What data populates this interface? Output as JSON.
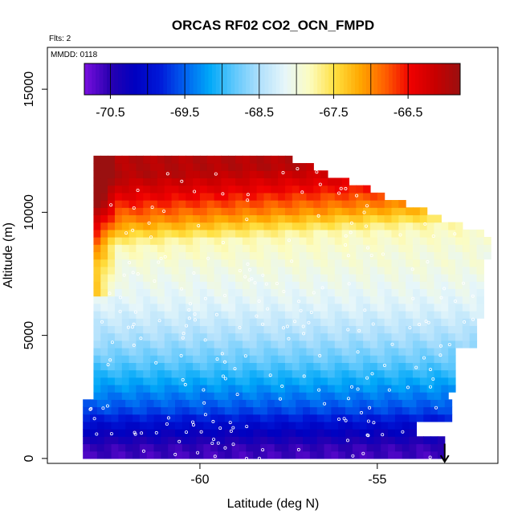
{
  "chart_data": {
    "type": "heatmap",
    "title": "ORCAS RF02 CO2_OCN_FMPD",
    "annotations": [
      "Flts: 2",
      "MMDD: 0118"
    ],
    "xlabel": "Latitude (deg N)",
    "ylabel": "Altitude (m)",
    "xlim": [
      -64.3,
      -51.6
    ],
    "ylim": [
      -200,
      16700
    ],
    "x_ticks": [
      -60,
      -55
    ],
    "x_tick_labels": [
      "-60",
      "-55"
    ],
    "y_ticks": [
      0,
      5000,
      10000,
      15000
    ],
    "y_tick_labels": [
      "0",
      "5000",
      "10000",
      "15000"
    ],
    "colorbar": {
      "min": -70.85,
      "max": -65.8,
      "tick_values": [
        -70.5,
        -69.5,
        -68.5,
        -67.5,
        -66.5
      ],
      "tick_labels": [
        "-70.5",
        "-69.5",
        "-68.5",
        "-67.5",
        "-66.5"
      ],
      "colors": [
        "#7a0fe0",
        "#2a00b0",
        "#0000c0",
        "#0018d8",
        "#0060f0",
        "#00a8f8",
        "#60c8fc",
        "#b0e0fc",
        "#e6f6fa",
        "#fcfcc0",
        "#ffe040",
        "#ffa800",
        "#ff6000",
        "#f00000",
        "#c80000",
        "#9a1010"
      ]
    },
    "layers": [
      {
        "alt_from": 0,
        "alt_to": 700,
        "value": -70.6
      },
      {
        "alt_from": 700,
        "alt_to": 1500,
        "value": -70.2
      },
      {
        "alt_from": 1500,
        "alt_to": 2500,
        "value": -69.6
      },
      {
        "alt_from": 2500,
        "alt_to": 3500,
        "value": -69.2
      },
      {
        "alt_from": 3500,
        "alt_to": 4500,
        "value": -68.8
      },
      {
        "alt_from": 4500,
        "alt_to": 5500,
        "value": -68.5
      },
      {
        "alt_from": 5500,
        "alt_to": 7000,
        "value": -68.2
      },
      {
        "alt_from": 7000,
        "alt_to": 8500,
        "value": -68.0
      },
      {
        "alt_from": 8500,
        "alt_to": 9500,
        "value": -67.8
      },
      {
        "alt_from": 9500,
        "alt_to": 10500,
        "value": -67.0
      },
      {
        "alt_from": 10500,
        "alt_to": 11500,
        "value": -66.4
      },
      {
        "alt_from": 11500,
        "alt_to": 12200,
        "value": -66.0
      }
    ],
    "flight_end_marker": {
      "lat": -53.1,
      "alt": 600
    }
  }
}
